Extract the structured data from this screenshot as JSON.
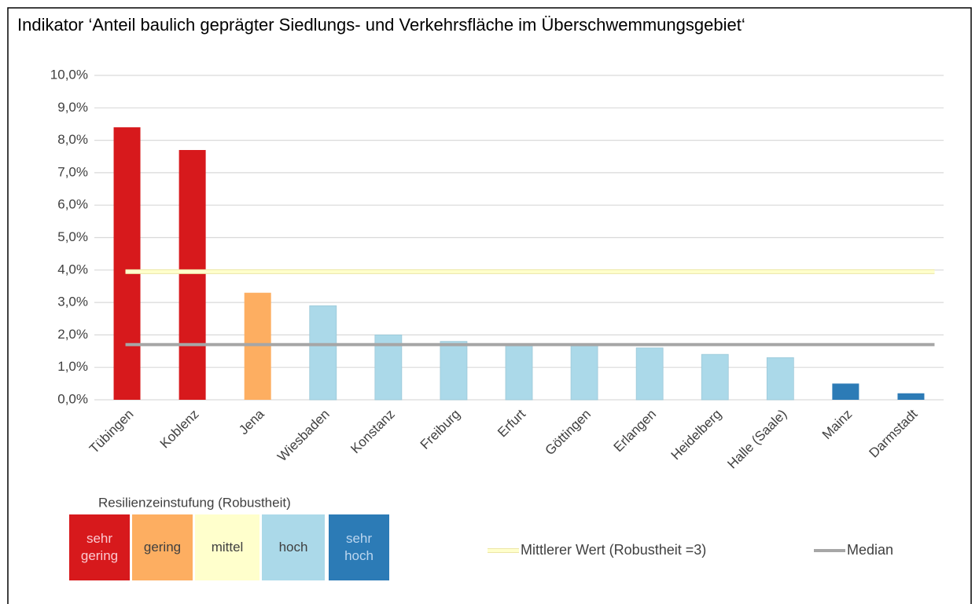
{
  "chart_data": {
    "type": "bar",
    "title": "Indikator ‘Anteil baulich geprägter Siedlungs- und Verkehrsfläche im Überschwemmungsgebiet‘",
    "categories": [
      "Tübingen",
      "Koblenz",
      "Jena",
      "Wiesbaden",
      "Konstanz",
      "Freiburg",
      "Erfurt",
      "Göttingen",
      "Erlangen",
      "Heidelberg",
      "Halle (Saale)",
      "Mainz",
      "Darmstadt"
    ],
    "values": [
      8.4,
      7.7,
      3.3,
      2.9,
      2.0,
      1.8,
      1.7,
      1.7,
      1.6,
      1.4,
      1.3,
      0.5,
      0.2
    ],
    "colors": [
      "#d7191c",
      "#d7191c",
      "#fdae61",
      "#abd9e9",
      "#abd9e9",
      "#abd9e9",
      "#abd9e9",
      "#abd9e9",
      "#abd9e9",
      "#abd9e9",
      "#abd9e9",
      "#2c7bb6",
      "#2c7bb6"
    ],
    "ylim": [
      0,
      10
    ],
    "yticks": [
      {
        "value": 0,
        "label": "0,0%"
      },
      {
        "value": 1,
        "label": "1,0%"
      },
      {
        "value": 2,
        "label": "2,0%"
      },
      {
        "value": 3,
        "label": "3,0%"
      },
      {
        "value": 4,
        "label": "4,0%"
      },
      {
        "value": 5,
        "label": "5,0%"
      },
      {
        "value": 6,
        "label": "6,0%"
      },
      {
        "value": 7,
        "label": "7,0%"
      },
      {
        "value": 8,
        "label": "8,0%"
      },
      {
        "value": 9,
        "label": "9,0%"
      },
      {
        "value": 10,
        "label": "10,0%"
      }
    ],
    "grid": true,
    "reference_lines": [
      {
        "name": "Mittlerer Wert (Robustheit =3)",
        "value": 3.95,
        "color": "#ffffcc"
      },
      {
        "name": "Median",
        "value": 1.7,
        "color": "#a6a6a6"
      }
    ],
    "classes_title": "Resilienzeinstufung (Robustheit)",
    "classes": [
      {
        "label": "sehr gering",
        "color": "#d7191c",
        "text_color": "#fbc9d0"
      },
      {
        "label": "gering",
        "color": "#fdae61",
        "text_color": "#404040"
      },
      {
        "label": "mittel",
        "color": "#ffffcc",
        "text_color": "#404040"
      },
      {
        "label": "hoch",
        "color": "#abd9e9",
        "text_color": "#404040"
      },
      {
        "label": "sehr hoch",
        "color": "#2c7bb6",
        "text_color": "#bcd6ef"
      }
    ]
  }
}
